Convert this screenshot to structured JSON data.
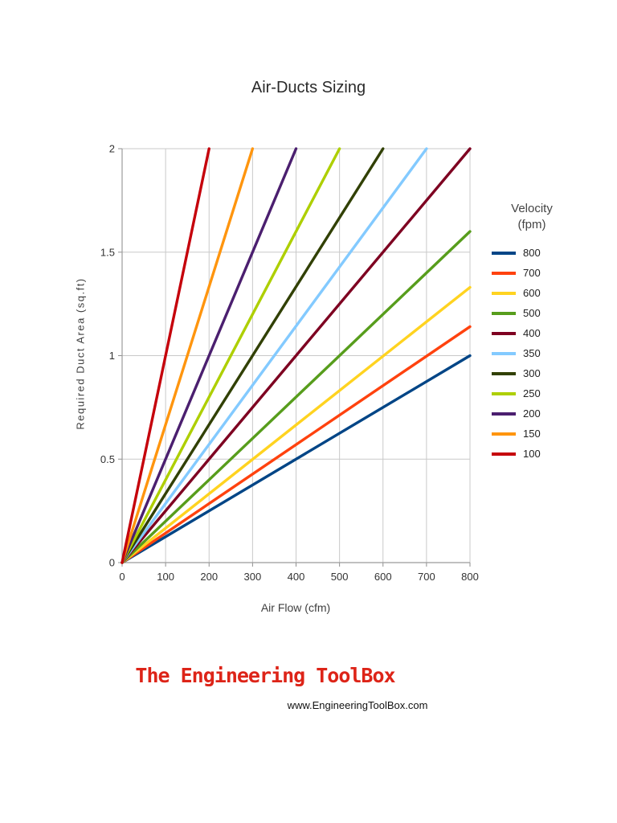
{
  "chart_data": {
    "type": "line",
    "title": "Air-Ducts Sizing",
    "xlabel": "Air Flow (cfm)",
    "ylabel": "Required Duct Area (sq.ft)",
    "xlim": [
      0,
      800
    ],
    "ylim": [
      0,
      2
    ],
    "x_ticks": [
      0,
      100,
      200,
      300,
      400,
      500,
      600,
      700,
      800
    ],
    "y_ticks": [
      0,
      0.5,
      1,
      1.5,
      2
    ],
    "grid": true,
    "legend": {
      "title": "Velocity",
      "subtitle": "(fpm)",
      "position": "right"
    },
    "series": [
      {
        "name": "800",
        "color": "#004586",
        "points": [
          [
            0,
            0
          ],
          [
            800,
            1.0
          ]
        ]
      },
      {
        "name": "700",
        "color": "#FF420E",
        "points": [
          [
            0,
            0
          ],
          [
            800,
            1.14
          ]
        ]
      },
      {
        "name": "600",
        "color": "#FFD320",
        "points": [
          [
            0,
            0
          ],
          [
            800,
            1.33
          ]
        ]
      },
      {
        "name": "500",
        "color": "#579D1C",
        "points": [
          [
            0,
            0
          ],
          [
            800,
            1.6
          ]
        ]
      },
      {
        "name": "400",
        "color": "#7E0021",
        "points": [
          [
            0,
            0
          ],
          [
            800,
            2.0
          ]
        ]
      },
      {
        "name": "350",
        "color": "#83CAFF",
        "points": [
          [
            0,
            0
          ],
          [
            700,
            2.0
          ]
        ]
      },
      {
        "name": "300",
        "color": "#314004",
        "points": [
          [
            0,
            0
          ],
          [
            600,
            2.0
          ]
        ]
      },
      {
        "name": "250",
        "color": "#AECF00",
        "points": [
          [
            0,
            0
          ],
          [
            500,
            2.0
          ]
        ]
      },
      {
        "name": "200",
        "color": "#4B1F6F",
        "points": [
          [
            0,
            0
          ],
          [
            400,
            2.0
          ]
        ]
      },
      {
        "name": "150",
        "color": "#FF950E",
        "points": [
          [
            0,
            0
          ],
          [
            300,
            2.0
          ]
        ]
      },
      {
        "name": "100",
        "color": "#C5000B",
        "points": [
          [
            0,
            0
          ],
          [
            200,
            2.0
          ]
        ]
      }
    ]
  },
  "footer": {
    "logo_text": "The Engineering ToolBox",
    "url": "www.EngineeringToolBox.com",
    "logo_color": "#DD2418"
  }
}
